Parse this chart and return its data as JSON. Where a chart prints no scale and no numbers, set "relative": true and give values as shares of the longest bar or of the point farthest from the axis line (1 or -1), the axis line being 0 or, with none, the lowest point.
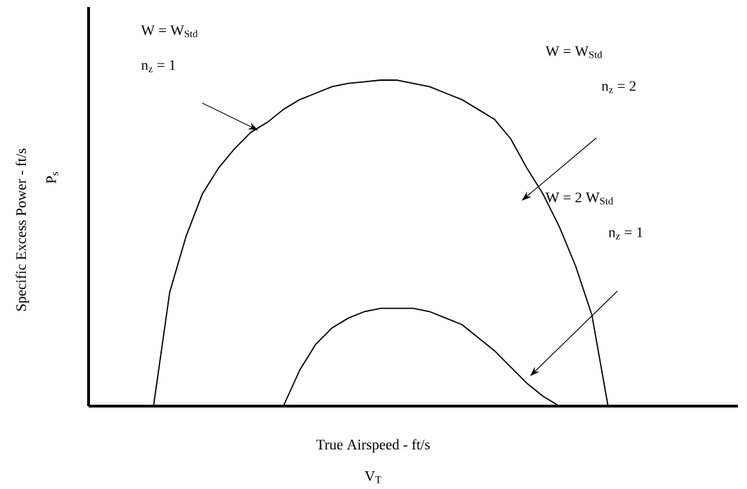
{
  "chart_data": {
    "type": "line",
    "relative": true,
    "xlabel": "True Airspeed - ft/s",
    "ylabel": "Specific Excess Power - ft/s",
    "categories": [
      null,
      null,
      null,
      null,
      null,
      null,
      null,
      null,
      null,
      null,
      null,
      null,
      null,
      null,
      null,
      null,
      null,
      null,
      null,
      null,
      null,
      null,
      null,
      null,
      null,
      null,
      null,
      null,
      null,
      null,
      null,
      null,
      null,
      null,
      null,
      null,
      null,
      null,
      null,
      null,
      null
    ],
    "series": [
      {
        "color": "#000000",
        "values": [
          null,
          null,
          null,
          null,
          0,
          0.35,
          0.52,
          0.65,
          0.73,
          0.79,
          0.84,
          0.87,
          0.91,
          0.94,
          0.96,
          0.98,
          0.99,
          0.995,
          1,
          1,
          0.99,
          0.98,
          0.96,
          0.94,
          0.91,
          0.88,
          0.82,
          0.73,
          0.65,
          0.55,
          0.43,
          0.28,
          0,
          null,
          null,
          null,
          null,
          null,
          null,
          null,
          null
        ]
      },
      {
        "color": "#000000",
        "values": [
          null,
          null,
          null,
          null,
          null,
          null,
          null,
          null,
          null,
          null,
          null,
          null,
          0,
          0.11,
          0.19,
          0.24,
          0.27,
          0.29,
          0.3,
          0.3,
          0.3,
          0.29,
          0.27,
          0.25,
          0.21,
          0.17,
          0.12,
          0.07,
          0.03,
          0,
          null,
          null,
          null,
          null,
          null,
          null,
          null,
          null,
          null,
          null,
          null
        ]
      }
    ],
    "annotations": [
      "W = W$_{Std}$",
      "n$_{z}$ = 1",
      "W = W$_{Std}$",
      "n$_{z}$ = 2",
      "W = 2 W$_{Std}$",
      "n$_{z}$ = 1",
      "V$_{T}$",
      "P$_{s}$"
    ]
  }
}
